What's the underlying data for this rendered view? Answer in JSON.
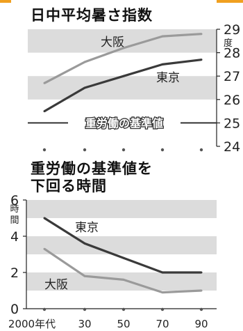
{
  "chart_data": [
    {
      "type": "line",
      "title": "日中平均暑さ指数",
      "x": [
        2000,
        2030,
        2050,
        2070,
        2090
      ],
      "series": [
        {
          "name": "大阪",
          "values": [
            26.7,
            27.6,
            28.2,
            28.7,
            28.8
          ],
          "color": "#9a9a9a"
        },
        {
          "name": "東京",
          "values": [
            25.5,
            26.5,
            27.0,
            27.5,
            27.7
          ],
          "color": "#3a3a3a"
        }
      ],
      "yticks": [
        24,
        25,
        26,
        27,
        28,
        29
      ],
      "ylim": [
        24,
        29
      ],
      "yunit": "度",
      "reference_line": {
        "value": 25,
        "label": "重労働の基準値"
      },
      "bands": [
        [
          28,
          29
        ],
        [
          26,
          27
        ]
      ]
    },
    {
      "type": "line",
      "title": [
        "重労働の基準値を",
        "下回る時間"
      ],
      "x": [
        2000,
        2030,
        2050,
        2070,
        2090
      ],
      "xticks": [
        "2000年代",
        "30",
        "50",
        "70",
        "90"
      ],
      "series": [
        {
          "name": "東京",
          "values": [
            5.0,
            3.6,
            2.8,
            2.0,
            2.0
          ],
          "color": "#3a3a3a"
        },
        {
          "name": "大阪",
          "values": [
            3.3,
            1.8,
            1.6,
            0.9,
            1.0
          ],
          "color": "#9a9a9a"
        }
      ],
      "yticks": [
        0,
        2,
        4,
        6
      ],
      "ylim": [
        0,
        6
      ],
      "yunit": "時間",
      "bands": [
        [
          5,
          6
        ],
        [
          3,
          4
        ],
        [
          1,
          2
        ]
      ]
    }
  ]
}
